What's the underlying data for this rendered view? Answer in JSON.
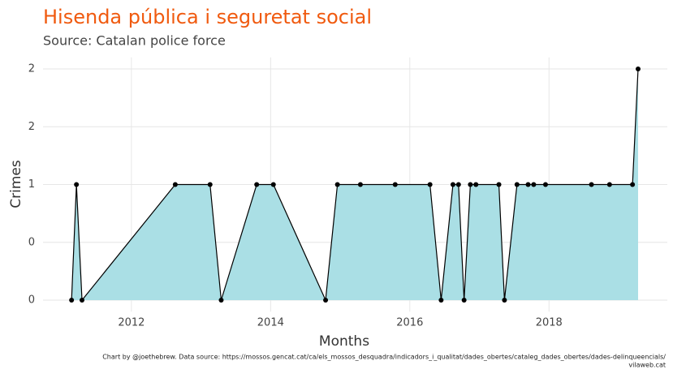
{
  "chart_data": {
    "type": "area",
    "title": "Hisenda pública i seguretat social",
    "subtitle": "Source: Catalan police force",
    "x_label": "Months",
    "y_label": "Crimes",
    "caption": [
      "Chart by @joethebrew. Data source: https://mossos.gencat.cat/ca/els_mossos_desquadra/indicadors_i_qualitat/dades_obertes/cataleg_dades_obertes/dades-delinqueencials/",
      "vilaweb.cat"
    ],
    "x": [
      2011.14,
      2011.21,
      2011.29,
      2012.63,
      2013.13,
      2013.29,
      2013.8,
      2014.04,
      2014.79,
      2014.96,
      2015.29,
      2015.79,
      2016.29,
      2016.45,
      2016.62,
      2016.7,
      2016.78,
      2016.87,
      2016.95,
      2017.28,
      2017.36,
      2017.54,
      2017.7,
      2017.78,
      2017.95,
      2018.61,
      2018.87,
      2019.2,
      2019.28
    ],
    "values": [
      0,
      1,
      0,
      1,
      1,
      0,
      1,
      1,
      0,
      1,
      1,
      1,
      1,
      0,
      1,
      1,
      0,
      1,
      1,
      1,
      0,
      1,
      1,
      1,
      1,
      1,
      1,
      1,
      2
    ],
    "fill_color": "#aadfe5",
    "line_color": "#000000",
    "xlim": [
      2010.73,
      2019.7
    ],
    "xticks": [
      2012,
      2014,
      2016,
      2018
    ],
    "ylim": [
      -0.1,
      2.1
    ],
    "yticks": [
      0,
      {
        "value": 0.5,
        "label": "0"
      },
      1,
      {
        "value": 1.5,
        "label": "2"
      },
      2
    ],
    "grid": true
  }
}
